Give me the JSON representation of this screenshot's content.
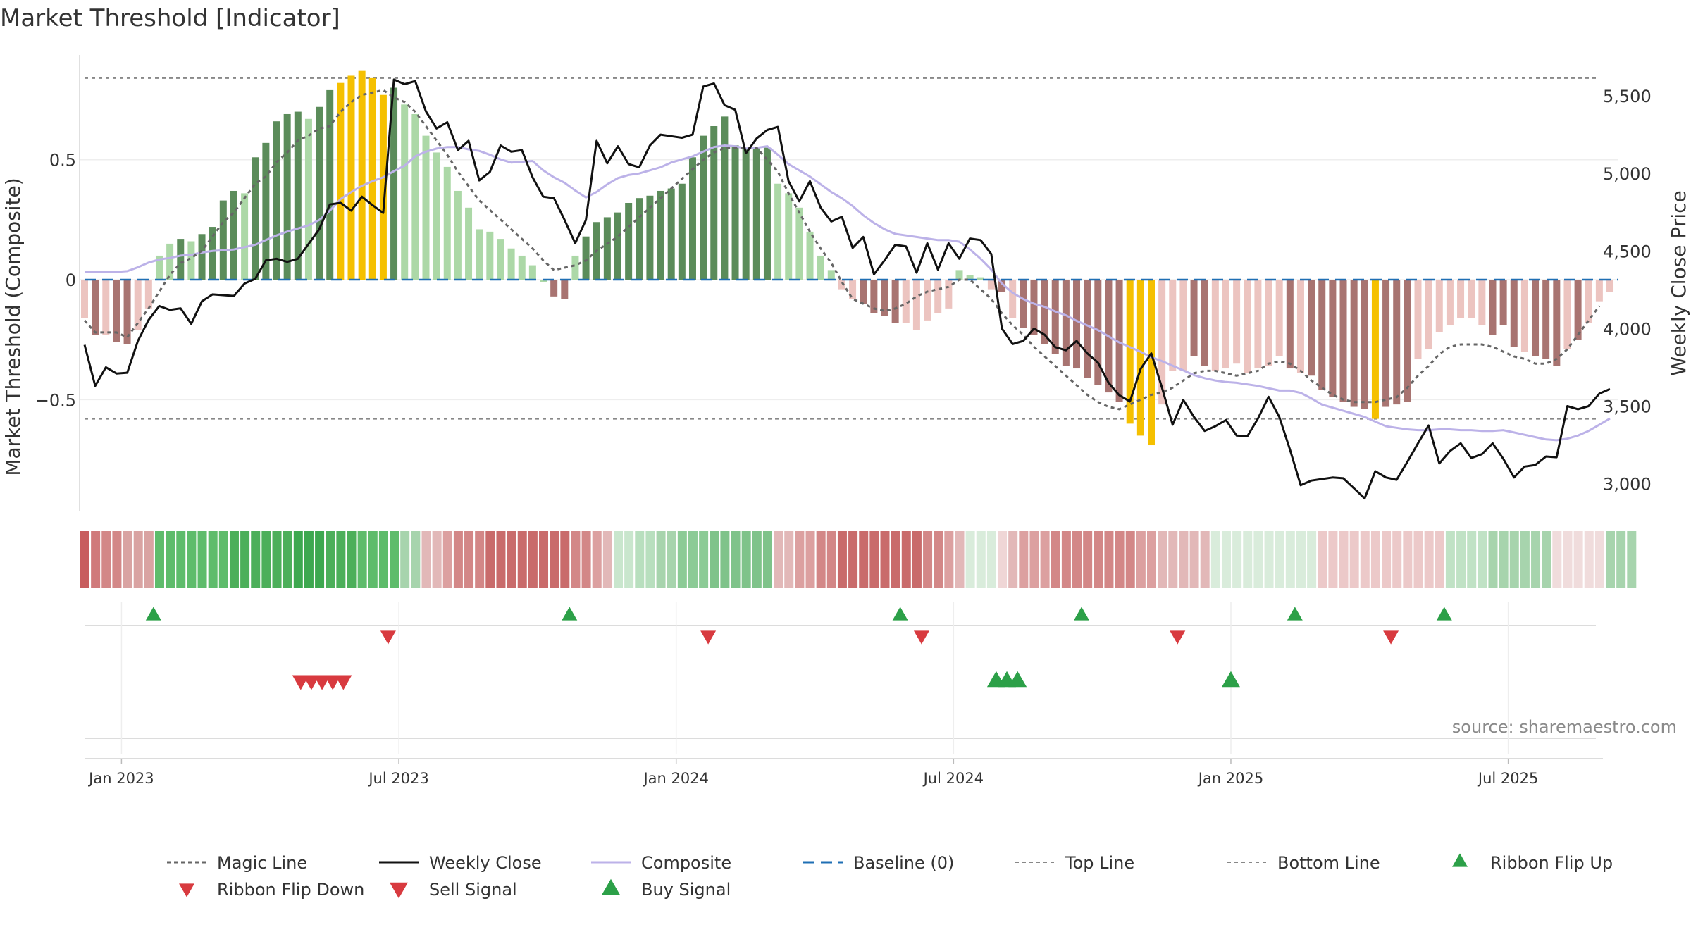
{
  "chart_data": {
    "type": "bar",
    "title": "Market Threshold [Indicator]",
    "ylabel": "Market Threshold (Composite)",
    "y2label": "Weekly Close Price",
    "source": "source: sharemaestro.com",
    "ylim": [
      -0.96,
      0.96
    ],
    "y2lim": [
      2830,
      5800
    ],
    "yticks": [
      {
        "v": 0.5,
        "label": "0.5"
      },
      {
        "v": 0,
        "label": "0"
      },
      {
        "v": -0.5,
        "label": "−0.5"
      }
    ],
    "y2ticks": [
      {
        "v": 5500,
        "label": "5,500"
      },
      {
        "v": 5000,
        "label": "5,000"
      },
      {
        "v": 4500,
        "label": "4,500"
      },
      {
        "v": 4000,
        "label": "4,000"
      },
      {
        "v": 3500,
        "label": "3,500"
      },
      {
        "v": 3000,
        "label": "3,000"
      }
    ],
    "xticks": [
      {
        "i": 3,
        "label": "Jan 2023"
      },
      {
        "i": 29,
        "label": "Jul 2023"
      },
      {
        "i": 55,
        "label": "Jan 2024"
      },
      {
        "i": 81,
        "label": "Jul 2024"
      },
      {
        "i": 107,
        "label": "Jan 2025"
      },
      {
        "i": 133,
        "label": "Jul 2025"
      }
    ],
    "top_line": 0.84,
    "bottom_line": -0.58,
    "composite": [
      -0.16,
      -0.23,
      -0.23,
      -0.26,
      -0.27,
      -0.21,
      -0.12,
      0.1,
      0.15,
      0.17,
      0.16,
      0.19,
      0.22,
      0.33,
      0.37,
      0.36,
      0.51,
      0.57,
      0.66,
      0.69,
      0.7,
      0.67,
      0.72,
      0.79,
      0.82,
      0.85,
      0.87,
      0.84,
      0.77,
      0.8,
      0.73,
      0.69,
      0.6,
      0.53,
      0.47,
      0.37,
      0.3,
      0.21,
      0.2,
      0.17,
      0.13,
      0.1,
      0.06,
      -0.01,
      -0.07,
      -0.08,
      0.1,
      0.18,
      0.24,
      0.26,
      0.28,
      0.32,
      0.34,
      0.35,
      0.37,
      0.38,
      0.4,
      0.51,
      0.6,
      0.64,
      0.68,
      0.56,
      0.55,
      0.55,
      0.55,
      0.4,
      0.36,
      0.3,
      0.2,
      0.1,
      0.04,
      -0.04,
      -0.08,
      -0.1,
      -0.14,
      -0.15,
      -0.18,
      -0.18,
      -0.21,
      -0.17,
      -0.14,
      -0.12,
      0.04,
      0.02,
      0.01,
      -0.04,
      -0.05,
      -0.16,
      -0.2,
      -0.23,
      -0.27,
      -0.31,
      -0.36,
      -0.37,
      -0.41,
      -0.44,
      -0.47,
      -0.51,
      -0.6,
      -0.65,
      -0.69,
      -0.52,
      -0.38,
      -0.38,
      -0.32,
      -0.36,
      -0.38,
      -0.37,
      -0.35,
      -0.39,
      -0.37,
      -0.36,
      -0.32,
      -0.37,
      -0.39,
      -0.4,
      -0.46,
      -0.49,
      -0.51,
      -0.53,
      -0.54,
      -0.58,
      -0.53,
      -0.52,
      -0.51,
      -0.33,
      -0.29,
      -0.22,
      -0.19,
      -0.16,
      -0.16,
      -0.19,
      -0.23,
      -0.19,
      -0.28,
      -0.3,
      -0.32,
      -0.33,
      -0.36,
      -0.29,
      -0.25,
      -0.18,
      -0.09,
      -0.05
    ],
    "bar_colors": [
      "lr",
      "dr",
      "lr",
      "dr",
      "dr",
      "lr",
      "lr",
      "lg",
      "lg",
      "dg",
      "lg",
      "dg",
      "dg",
      "dg",
      "dg",
      "lg",
      "dg",
      "dg",
      "dg",
      "dg",
      "dg",
      "lg",
      "dg",
      "dg",
      "y",
      "y",
      "y",
      "y",
      "y",
      "dg",
      "lg",
      "lg",
      "lg",
      "lg",
      "lg",
      "lg",
      "lg",
      "lg",
      "lg",
      "lg",
      "lg",
      "lg",
      "lg",
      "lg",
      "dr",
      "dr",
      "lg",
      "dg",
      "dg",
      "dg",
      "dg",
      "dg",
      "dg",
      "dg",
      "dg",
      "dg",
      "dg",
      "dg",
      "dg",
      "dg",
      "dg",
      "dg",
      "dg",
      "dg",
      "dg",
      "lg",
      "lg",
      "lg",
      "lg",
      "lg",
      "lg",
      "lr",
      "lr",
      "dr",
      "dr",
      "dr",
      "dr",
      "lr",
      "lr",
      "lr",
      "lr",
      "lr",
      "lg",
      "lg",
      "lg",
      "lr",
      "dr",
      "lr",
      "dr",
      "dr",
      "dr",
      "dr",
      "dr",
      "dr",
      "dr",
      "dr",
      "dr",
      "dr",
      "y",
      "y",
      "y",
      "lr",
      "lr",
      "lr",
      "dr",
      "dr",
      "lr",
      "lr",
      "lr",
      "lr",
      "lr",
      "lr",
      "lr",
      "dr",
      "lr",
      "dr",
      "dr",
      "dr",
      "dr",
      "dr",
      "dr",
      "y",
      "dr",
      "dr",
      "dr",
      "lr",
      "lr",
      "lr",
      "lr",
      "lr",
      "lr",
      "lr",
      "dr",
      "dr",
      "dr",
      "lr",
      "dr",
      "dr",
      "dr",
      "lr",
      "dr",
      "lr",
      "lr",
      "lr",
      "lr",
      "lr"
    ],
    "magic_line": [
      -0.17,
      -0.22,
      -0.22,
      -0.22,
      -0.24,
      -0.18,
      -0.12,
      -0.05,
      0.02,
      0.07,
      0.09,
      0.12,
      0.18,
      0.24,
      0.28,
      0.34,
      0.4,
      0.43,
      0.49,
      0.53,
      0.58,
      0.6,
      0.63,
      0.64,
      0.7,
      0.74,
      0.77,
      0.78,
      0.79,
      0.76,
      0.74,
      0.7,
      0.64,
      0.58,
      0.52,
      0.45,
      0.39,
      0.33,
      0.29,
      0.25,
      0.21,
      0.17,
      0.13,
      0.08,
      0.04,
      0.05,
      0.06,
      0.08,
      0.12,
      0.15,
      0.18,
      0.22,
      0.26,
      0.3,
      0.34,
      0.38,
      0.42,
      0.46,
      0.5,
      0.53,
      0.55,
      0.55,
      0.55,
      0.55,
      0.5,
      0.45,
      0.36,
      0.28,
      0.2,
      0.13,
      0.07,
      -0.01,
      -0.08,
      -0.1,
      -0.12,
      -0.13,
      -0.12,
      -0.1,
      -0.07,
      -0.05,
      -0.04,
      -0.03,
      0.0,
      0.0,
      -0.04,
      -0.08,
      -0.14,
      -0.19,
      -0.23,
      -0.28,
      -0.32,
      -0.36,
      -0.4,
      -0.44,
      -0.48,
      -0.51,
      -0.53,
      -0.54,
      -0.52,
      -0.5,
      -0.48,
      -0.47,
      -0.45,
      -0.42,
      -0.39,
      -0.38,
      -0.38,
      -0.39,
      -0.4,
      -0.39,
      -0.38,
      -0.35,
      -0.34,
      -0.35,
      -0.38,
      -0.42,
      -0.45,
      -0.48,
      -0.5,
      -0.51,
      -0.51,
      -0.51,
      -0.5,
      -0.49,
      -0.45,
      -0.4,
      -0.36,
      -0.31,
      -0.28,
      -0.27,
      -0.27,
      -0.27,
      -0.28,
      -0.3,
      -0.32,
      -0.33,
      -0.35,
      -0.35,
      -0.33,
      -0.29,
      -0.23,
      -0.17,
      -0.11
    ],
    "weekly_close": [
      3895,
      3630,
      3750,
      3710,
      3715,
      3920,
      4055,
      4145,
      4120,
      4130,
      4030,
      4175,
      4220,
      4215,
      4210,
      4290,
      4320,
      4440,
      4450,
      4430,
      4450,
      4545,
      4640,
      4800,
      4810,
      4760,
      4850,
      4795,
      4745,
      5605,
      5575,
      5595,
      5400,
      5290,
      5330,
      5150,
      5210,
      4955,
      5010,
      5180,
      5140,
      5150,
      4975,
      4850,
      4840,
      4700,
      4550,
      4700,
      5210,
      5065,
      5175,
      5060,
      5040,
      5180,
      5250,
      5240,
      5230,
      5250,
      5560,
      5580,
      5440,
      5410,
      5130,
      5225,
      5280,
      5300,
      4950,
      4820,
      4950,
      4780,
      4690,
      4720,
      4520,
      4590,
      4350,
      4440,
      4540,
      4530,
      4360,
      4550,
      4380,
      4550,
      4450,
      4580,
      4570,
      4480,
      4000,
      3900,
      3920,
      4000,
      3960,
      3880,
      3860,
      3920,
      3840,
      3780,
      3650,
      3570,
      3530,
      3740,
      3840,
      3620,
      3380,
      3540,
      3430,
      3340,
      3370,
      3410,
      3310,
      3305,
      3420,
      3560,
      3430,
      3220,
      2990,
      3020,
      3030,
      3040,
      3035,
      2970,
      2905,
      3080,
      3040,
      3025,
      3140,
      3260,
      3375,
      3130,
      3210,
      3260,
      3165,
      3190,
      3260,
      3160,
      3040,
      3110,
      3120,
      3175,
      3170,
      3500,
      3480,
      3500,
      3580,
      3610
    ],
    "composite_line": [
      4365,
      4365,
      4365,
      4365,
      4370,
      4395,
      4425,
      4445,
      4455,
      4470,
      4475,
      4490,
      4500,
      4505,
      4510,
      4525,
      4540,
      4570,
      4600,
      4625,
      4645,
      4665,
      4700,
      4760,
      4835,
      4880,
      4920,
      4950,
      4975,
      5015,
      5050,
      5110,
      5140,
      5160,
      5170,
      5170,
      5155,
      5145,
      5120,
      5090,
      5070,
      5075,
      5080,
      5020,
      4975,
      4940,
      4890,
      4845,
      4880,
      4930,
      4970,
      4990,
      5000,
      5020,
      5040,
      5070,
      5090,
      5110,
      5140,
      5170,
      5180,
      5175,
      5160,
      5165,
      5175,
      5120,
      5060,
      5020,
      4980,
      4930,
      4880,
      4840,
      4790,
      4730,
      4680,
      4640,
      4610,
      4600,
      4590,
      4580,
      4570,
      4570,
      4560,
      4510,
      4450,
      4380,
      4290,
      4230,
      4190,
      4160,
      4140,
      4110,
      4085,
      4050,
      4020,
      3990,
      3950,
      3910,
      3880,
      3850,
      3815,
      3790,
      3760,
      3730,
      3700,
      3680,
      3665,
      3655,
      3650,
      3640,
      3630,
      3615,
      3600,
      3600,
      3585,
      3550,
      3510,
      3490,
      3470,
      3450,
      3430,
      3400,
      3370,
      3360,
      3350,
      3345,
      3345,
      3350,
      3350,
      3345,
      3345,
      3340,
      3340,
      3345,
      3330,
      3315,
      3300,
      3285,
      3280,
      3290,
      3310,
      3340,
      3380,
      3420
    ],
    "ribbon": [
      "#c85d5e",
      "#d07a7b",
      "#d38787",
      "#d38787",
      "#d9a3a2",
      "#d9a3a2",
      "#d9a3a2",
      "#5ebc6b",
      "#5ebc6b",
      "#5ebc6b",
      "#5ebc6b",
      "#5ebc6b",
      "#5ebc6b",
      "#5ebc6b",
      "#4caf5a",
      "#4caf5a",
      "#4caf5a",
      "#4caf5a",
      "#4caf5a",
      "#4caf5a",
      "#3da84f",
      "#3da84f",
      "#3da84f",
      "#4caf5a",
      "#4caf5a",
      "#4caf5a",
      "#5ebc6b",
      "#5ebc6b",
      "#5ebc6b",
      "#5ebc6b",
      "#a7d4ad",
      "#a7d4ad",
      "#e2b8b8",
      "#e2b8b8",
      "#dca0a0",
      "#d38787",
      "#d38787",
      "#d38787",
      "#c96b6b",
      "#c96b6b",
      "#c96b6b",
      "#c96b6b",
      "#c96b6b",
      "#c96b6b",
      "#c96b6b",
      "#c96b6b",
      "#d38787",
      "#d38787",
      "#dca0a0",
      "#e2b8b8",
      "#c9e6cd",
      "#c9e6cd",
      "#b8dfbe",
      "#b8dfbe",
      "#a7d4ad",
      "#a7d4ad",
      "#8ccb96",
      "#8ccb96",
      "#8ccb96",
      "#7fc38a",
      "#7fc38a",
      "#7fc38a",
      "#7fc38a",
      "#7fc38a",
      "#7fc38a",
      "#e2b8b8",
      "#e2b8b8",
      "#dca0a0",
      "#dca0a0",
      "#d38787",
      "#d38787",
      "#c96b6b",
      "#c96b6b",
      "#c96b6b",
      "#c96b6b",
      "#c96b6b",
      "#c96b6b",
      "#c96b6b",
      "#c96b6b",
      "#d38787",
      "#d38787",
      "#dca0a0",
      "#e2b8b8",
      "#d9ecdb",
      "#d9ecdb",
      "#d9ecdb",
      "#efd6d6",
      "#e2b8b8",
      "#dca0a0",
      "#dca0a0",
      "#dca0a0",
      "#d38787",
      "#d38787",
      "#d38787",
      "#d38787",
      "#d38787",
      "#d38787",
      "#d38787",
      "#d38787",
      "#dca0a0",
      "#dca0a0",
      "#e2b8b8",
      "#e2b8b8",
      "#e2b8b8",
      "#e2b8b8",
      "#e2b8b8",
      "#d9ecdb",
      "#d9ecdb",
      "#d9ecdb",
      "#d9ecdb",
      "#d9ecdb",
      "#d9ecdb",
      "#d9ecdb",
      "#d9ecdb",
      "#d9ecdb",
      "#d9ecdb",
      "#ecc9c9",
      "#ecc9c9",
      "#ecc9c9",
      "#ecc9c9",
      "#ecc9c9",
      "#ecc9c9",
      "#ecc9c9",
      "#ecc9c9",
      "#ecc9c9",
      "#ecc9c9",
      "#ecc9c9",
      "#ecc9c9",
      "#c0e2c5",
      "#c0e2c5",
      "#c0e2c5",
      "#c0e2c5",
      "#a7d4ad",
      "#a7d4ad",
      "#a7d4ad",
      "#a7d4ad",
      "#a7d4ad",
      "#a7d4ad",
      "#f0dcdc",
      "#f0dcdc",
      "#f0dcdc",
      "#f0dcdc",
      "#f0dcdc",
      "#a7d4ad",
      "#a7d4ad",
      "#a7d4ad"
    ],
    "ribbon_flip_up": [
      6,
      45,
      76,
      93,
      113,
      127
    ],
    "ribbon_flip_down": [
      28,
      58,
      78,
      102,
      122
    ],
    "sell_signal": [
      20,
      21,
      22,
      23,
      24
    ],
    "buy_signal": [
      85,
      86,
      87,
      107
    ],
    "legend": [
      {
        "key": "magic",
        "label": "Magic Line"
      },
      {
        "key": "close",
        "label": "Weekly Close"
      },
      {
        "key": "composite",
        "label": "Composite"
      },
      {
        "key": "baseline",
        "label": "Baseline (0)"
      },
      {
        "key": "top",
        "label": "Top Line"
      },
      {
        "key": "bottom",
        "label": "Bottom Line"
      },
      {
        "key": "flipup",
        "label": "Ribbon Flip Up"
      },
      {
        "key": "flipdown",
        "label": "Ribbon Flip Down"
      },
      {
        "key": "sell",
        "label": "Sell Signal"
      },
      {
        "key": "buy",
        "label": "Buy Signal"
      }
    ],
    "colors": {
      "dark_green": "#5b8c5a",
      "light_green": "#acd8a7",
      "dark_red": "#a87471",
      "light_red": "#ecc4c0",
      "yellow": "#f5c000",
      "magic": "#666666",
      "close": "#111111",
      "composite": "#bcb2e8",
      "baseline": "#1f6fb4",
      "ref_lines": "#888888",
      "buy": "#2ca048",
      "sell": "#d83a3f"
    }
  }
}
